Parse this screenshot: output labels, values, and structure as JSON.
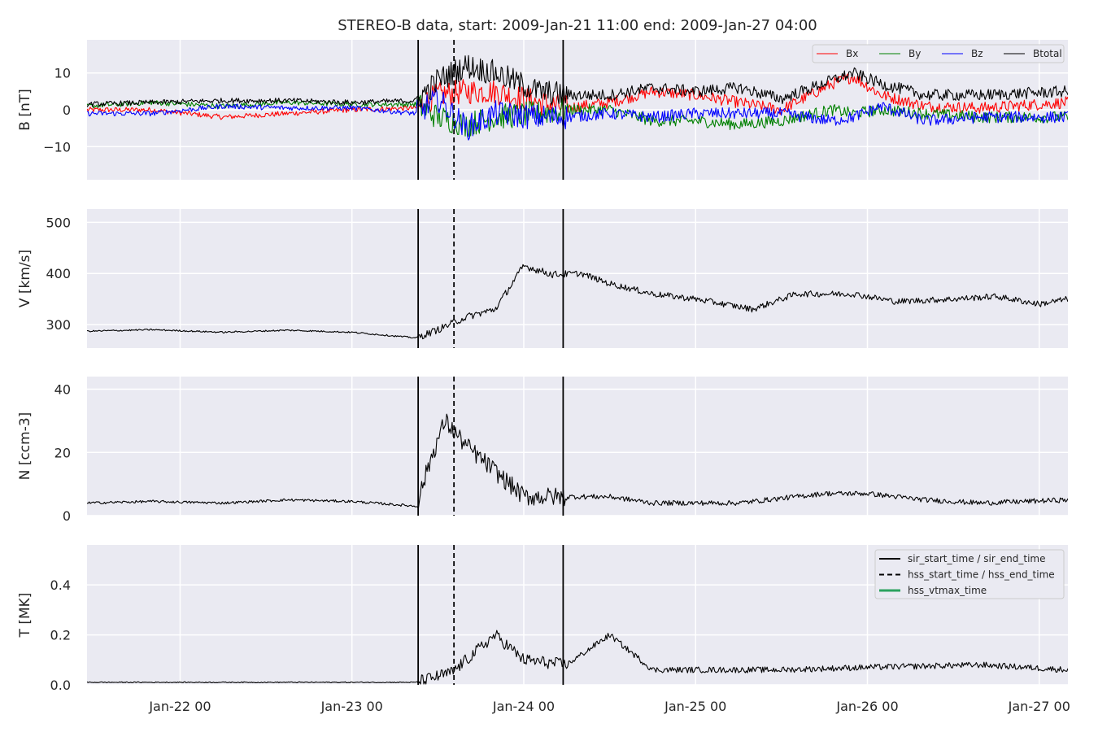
{
  "chart_data": {
    "type": "line",
    "title": "STEREO-B data, start: 2009-Jan-21 11:00  end: 2009-Jan-27 04:00",
    "x_range": [
      "2009-01-21T11:00",
      "2009-01-27T04:00"
    ],
    "x_ticks": [
      {
        "t": "2009-01-22T00:00",
        "label": "Jan-22 00"
      },
      {
        "t": "2009-01-23T00:00",
        "label": "Jan-23 00"
      },
      {
        "t": "2009-01-24T00:00",
        "label": "Jan-24 00"
      },
      {
        "t": "2009-01-25T00:00",
        "label": "Jan-25 00"
      },
      {
        "t": "2009-01-26T00:00",
        "label": "Jan-26 00"
      },
      {
        "t": "2009-01-27T00:00",
        "label": "Jan-27 00"
      }
    ],
    "event_lines": {
      "sir_start_time": "2009-01-23T09:15",
      "hss_start_time": "2009-01-23T14:15",
      "sir_end_time": "2009-01-24T05:30"
    },
    "grid": true,
    "panels": [
      {
        "id": "B",
        "ylabel": "B [nT]",
        "ylim": [
          -19,
          19
        ],
        "yticks": [
          {
            "v": -10,
            "label": "−10"
          },
          {
            "v": 0,
            "label": "0"
          },
          {
            "v": 10,
            "label": "10"
          }
        ],
        "legend": {
          "placement": "top-right",
          "columns": 4
        },
        "series": [
          {
            "name": "Bx",
            "color": "#ff0000",
            "values": [
              [
                "2009-01-21T11:00",
                0
              ],
              [
                "2009-01-21T20:00",
                0
              ],
              [
                "2009-01-22T06:00",
                -2
              ],
              [
                "2009-01-22T15:00",
                -1
              ],
              [
                "2009-01-23T00:00",
                0
              ],
              [
                "2009-01-23T09:00",
                0.5
              ],
              [
                "2009-01-23T12:00",
                4
              ],
              [
                "2009-01-23T16:00",
                5
              ],
              [
                "2009-01-23T20:00",
                5
              ],
              [
                "2009-01-24T02:00",
                2
              ],
              [
                "2009-01-24T06:00",
                0.5
              ],
              [
                "2009-01-24T12:00",
                2
              ],
              [
                "2009-01-24T18:00",
                5
              ],
              [
                "2009-01-25T00:00",
                4
              ],
              [
                "2009-01-25T06:00",
                2
              ],
              [
                "2009-01-25T12:00",
                0
              ],
              [
                "2009-01-25T19:00",
                7
              ],
              [
                "2009-01-25T22:00",
                9
              ],
              [
                "2009-01-26T02:00",
                4
              ],
              [
                "2009-01-26T08:00",
                1
              ],
              [
                "2009-01-26T16:00",
                0.5
              ],
              [
                "2009-01-27T04:00",
                2
              ]
            ]
          },
          {
            "name": "By",
            "color": "#008000",
            "values": [
              [
                "2009-01-21T11:00",
                1
              ],
              [
                "2009-01-21T20:00",
                2
              ],
              [
                "2009-01-22T06:00",
                1
              ],
              [
                "2009-01-22T15:00",
                2
              ],
              [
                "2009-01-23T00:00",
                1.5
              ],
              [
                "2009-01-23T09:00",
                1.5
              ],
              [
                "2009-01-23T12:00",
                -2
              ],
              [
                "2009-01-23T16:00",
                -4
              ],
              [
                "2009-01-23T20:00",
                -2
              ],
              [
                "2009-01-24T02:00",
                -1
              ],
              [
                "2009-01-24T06:00",
                0
              ],
              [
                "2009-01-24T12:00",
                0
              ],
              [
                "2009-01-24T18:00",
                -3
              ],
              [
                "2009-01-25T00:00",
                -3
              ],
              [
                "2009-01-25T06:00",
                -4
              ],
              [
                "2009-01-25T12:00",
                -3
              ],
              [
                "2009-01-25T19:00",
                0
              ],
              [
                "2009-01-25T22:00",
                -1
              ],
              [
                "2009-01-26T02:00",
                0
              ],
              [
                "2009-01-26T08:00",
                -1
              ],
              [
                "2009-01-26T16:00",
                -2
              ],
              [
                "2009-01-27T04:00",
                -2
              ]
            ]
          },
          {
            "name": "Bz",
            "color": "#0000ff",
            "values": [
              [
                "2009-01-21T11:00",
                -1
              ],
              [
                "2009-01-21T20:00",
                -1
              ],
              [
                "2009-01-22T06:00",
                1
              ],
              [
                "2009-01-22T15:00",
                0.5
              ],
              [
                "2009-01-23T00:00",
                0.5
              ],
              [
                "2009-01-23T09:00",
                -1
              ],
              [
                "2009-01-23T12:00",
                3
              ],
              [
                "2009-01-23T16:00",
                -5
              ],
              [
                "2009-01-23T20:00",
                -1
              ],
              [
                "2009-01-24T02:00",
                -2
              ],
              [
                "2009-01-24T06:00",
                -2
              ],
              [
                "2009-01-24T12:00",
                -1
              ],
              [
                "2009-01-24T18:00",
                -2
              ],
              [
                "2009-01-25T00:00",
                -1
              ],
              [
                "2009-01-25T06:00",
                -1
              ],
              [
                "2009-01-25T12:00",
                -1
              ],
              [
                "2009-01-25T19:00",
                -3
              ],
              [
                "2009-01-25T22:00",
                -2
              ],
              [
                "2009-01-26T02:00",
                1
              ],
              [
                "2009-01-26T08:00",
                -3
              ],
              [
                "2009-01-26T16:00",
                -2
              ],
              [
                "2009-01-27T04:00",
                -2
              ]
            ]
          },
          {
            "name": "Btotal",
            "color": "#000000",
            "values": [
              [
                "2009-01-21T11:00",
                1.5
              ],
              [
                "2009-01-21T20:00",
                2
              ],
              [
                "2009-01-22T06:00",
                2.5
              ],
              [
                "2009-01-22T15:00",
                2.5
              ],
              [
                "2009-01-23T00:00",
                2
              ],
              [
                "2009-01-23T09:00",
                2.5
              ],
              [
                "2009-01-23T12:00",
                8
              ],
              [
                "2009-01-23T16:00",
                12
              ],
              [
                "2009-01-23T20:00",
                10
              ],
              [
                "2009-01-24T02:00",
                5
              ],
              [
                "2009-01-24T06:00",
                4
              ],
              [
                "2009-01-24T12:00",
                4
              ],
              [
                "2009-01-24T18:00",
                6
              ],
              [
                "2009-01-25T00:00",
                5
              ],
              [
                "2009-01-25T06:00",
                6
              ],
              [
                "2009-01-25T12:00",
                3
              ],
              [
                "2009-01-25T19:00",
                8
              ],
              [
                "2009-01-25T22:00",
                10
              ],
              [
                "2009-01-26T02:00",
                7
              ],
              [
                "2009-01-26T08:00",
                4
              ],
              [
                "2009-01-26T16:00",
                4
              ],
              [
                "2009-01-27T04:00",
                5
              ]
            ]
          }
        ]
      },
      {
        "id": "V",
        "ylabel": "V [km/s]",
        "ylim": [
          254,
          526
        ],
        "yticks": [
          {
            "v": 300,
            "label": "300"
          },
          {
            "v": 400,
            "label": "400"
          },
          {
            "v": 500,
            "label": "500"
          }
        ],
        "series": [
          {
            "name": "V",
            "color": "#000000",
            "values": [
              [
                "2009-01-21T11:00",
                287
              ],
              [
                "2009-01-21T20:00",
                290
              ],
              [
                "2009-01-22T06:00",
                285
              ],
              [
                "2009-01-22T15:00",
                289
              ],
              [
                "2009-01-23T00:00",
                285
              ],
              [
                "2009-01-23T09:00",
                274
              ],
              [
                "2009-01-23T12:00",
                290
              ],
              [
                "2009-01-23T16:00",
                315
              ],
              [
                "2009-01-23T20:00",
                330
              ],
              [
                "2009-01-24T00:00",
                415
              ],
              [
                "2009-01-24T04:00",
                398
              ],
              [
                "2009-01-24T08:00",
                400
              ],
              [
                "2009-01-24T12:00",
                380
              ],
              [
                "2009-01-24T18:00",
                360
              ],
              [
                "2009-01-25T00:00",
                350
              ],
              [
                "2009-01-25T08:00",
                330
              ],
              [
                "2009-01-25T14:00",
                360
              ],
              [
                "2009-01-25T22:00",
                360
              ],
              [
                "2009-01-26T04:00",
                345
              ],
              [
                "2009-01-26T12:00",
                350
              ],
              [
                "2009-01-26T18:00",
                355
              ],
              [
                "2009-01-27T00:00",
                340
              ],
              [
                "2009-01-27T04:00",
                350
              ]
            ]
          }
        ]
      },
      {
        "id": "N",
        "ylabel": "N [ccm-3]",
        "ylim": [
          0,
          44
        ],
        "yticks": [
          {
            "v": 0,
            "label": "0"
          },
          {
            "v": 20,
            "label": "20"
          },
          {
            "v": 40,
            "label": "40"
          }
        ],
        "series": [
          {
            "name": "N",
            "color": "#000000",
            "values": [
              [
                "2009-01-21T11:00",
                4
              ],
              [
                "2009-01-21T20:00",
                4.5
              ],
              [
                "2009-01-22T06:00",
                4
              ],
              [
                "2009-01-22T15:00",
                5
              ],
              [
                "2009-01-23T00:00",
                4.5
              ],
              [
                "2009-01-23T09:00",
                3
              ],
              [
                "2009-01-23T11:00",
                18
              ],
              [
                "2009-01-23T13:00",
                30
              ],
              [
                "2009-01-23T16:00",
                22
              ],
              [
                "2009-01-23T20:00",
                14
              ],
              [
                "2009-01-24T00:00",
                6
              ],
              [
                "2009-01-24T06:00",
                6
              ],
              [
                "2009-01-24T12:00",
                6
              ],
              [
                "2009-01-24T18:00",
                4
              ],
              [
                "2009-01-25T06:00",
                4
              ],
              [
                "2009-01-25T18:00",
                7
              ],
              [
                "2009-01-26T00:00",
                7
              ],
              [
                "2009-01-26T08:00",
                5
              ],
              [
                "2009-01-26T16:00",
                4
              ],
              [
                "2009-01-27T04:00",
                5
              ]
            ]
          }
        ]
      },
      {
        "id": "T",
        "ylabel": "T [MK]",
        "ylim": [
          0,
          0.56
        ],
        "yticks": [
          {
            "v": 0,
            "label": "0.0"
          },
          {
            "v": 0.2,
            "label": "0.2"
          },
          {
            "v": 0.4,
            "label": "0.4"
          }
        ],
        "legend": {
          "placement": "top-right",
          "columns": 1
        },
        "series": [
          {
            "name": "T",
            "color": "#000000",
            "values": [
              [
                "2009-01-21T11:00",
                0.01
              ],
              [
                "2009-01-22T12:00",
                0.01
              ],
              [
                "2009-01-23T09:00",
                0.01
              ],
              [
                "2009-01-23T14:00",
                0.05
              ],
              [
                "2009-01-23T20:00",
                0.2
              ],
              [
                "2009-01-24T00:00",
                0.1
              ],
              [
                "2009-01-24T06:00",
                0.08
              ],
              [
                "2009-01-24T12:00",
                0.2
              ],
              [
                "2009-01-24T18:00",
                0.06
              ],
              [
                "2009-01-25T00:00",
                0.06
              ],
              [
                "2009-01-25T12:00",
                0.06
              ],
              [
                "2009-01-26T00:00",
                0.07
              ],
              [
                "2009-01-26T16:00",
                0.08
              ],
              [
                "2009-01-27T04:00",
                0.06
              ]
            ]
          }
        ]
      }
    ],
    "legend_entries": [
      {
        "label": "sir_start_time / sir_end_time",
        "color": "#000000",
        "style": "solid"
      },
      {
        "label": "hss_start_time / hss_end_time",
        "color": "#000000",
        "style": "dashed"
      },
      {
        "label": "hss_vtmax_time",
        "color": "#2ca25f",
        "style": "solid"
      }
    ]
  }
}
